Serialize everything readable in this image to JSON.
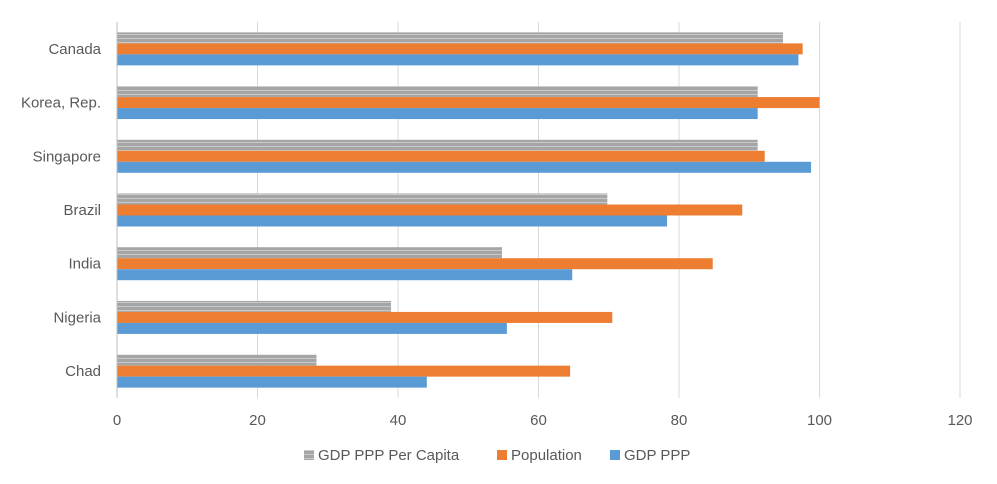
{
  "chart_data": {
    "type": "bar",
    "orientation": "horizontal",
    "title": "",
    "xlabel": "",
    "ylabel": "",
    "xlim": [
      0,
      120
    ],
    "x_ticks": [
      0,
      20,
      40,
      60,
      80,
      100,
      120
    ],
    "grid": true,
    "legend_position": "bottom",
    "categories": [
      "Canada",
      "Korea, Rep.",
      "Singapore",
      "Brazil",
      "India",
      "Nigeria",
      "Chad"
    ],
    "series": [
      {
        "name": "GDP PPP Per Capita",
        "color": "#A5A5A5",
        "pattern": "striped",
        "values": [
          94.8,
          91.2,
          91.2,
          69.8,
          54.8,
          39.0,
          28.4
        ]
      },
      {
        "name": "Population",
        "color": "#ED7D31",
        "values": [
          97.6,
          100.0,
          92.2,
          89.0,
          84.8,
          70.5,
          64.5
        ]
      },
      {
        "name": "GDP PPP",
        "color": "#5B9BD5",
        "values": [
          97.0,
          91.2,
          98.8,
          78.3,
          64.8,
          55.5,
          44.1
        ]
      }
    ]
  }
}
